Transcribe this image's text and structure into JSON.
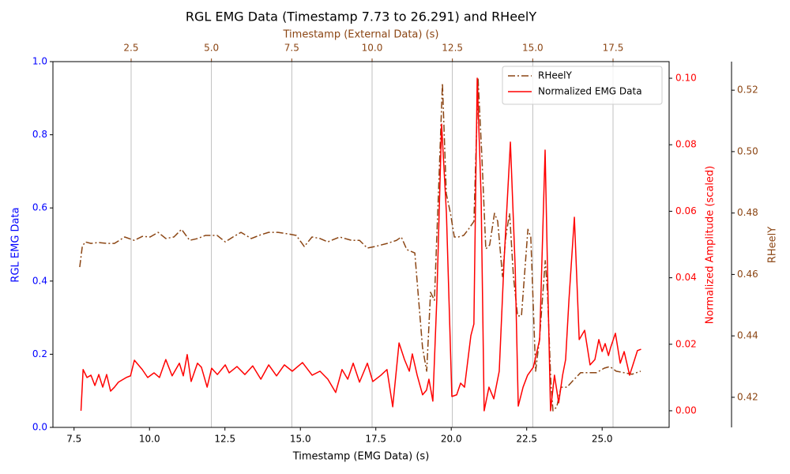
{
  "chart_data": {
    "type": "line",
    "title": "RGL EMG Data (Timestamp 7.73 to 26.291) and RHeelY",
    "x_label": "Timestamp (EMG Data) (s)",
    "x2_label": "Timestamp (External Data) (s)",
    "y_label": "RGL EMG Data",
    "y2_label": "Normalized Amplitude (scaled)",
    "y3_label": "RHeelY",
    "xlim": [
      6.8,
      27.22
    ],
    "xticks": [
      7.5,
      {
        "value": 10,
        "label": "10.0"
      },
      12.5,
      {
        "value": 15,
        "label": "15.0"
      },
      17.5,
      {
        "value": 20,
        "label": "20.0"
      },
      22.5,
      {
        "value": 25,
        "label": "25.0"
      }
    ],
    "x2lim": [
      0.066,
      19.246
    ],
    "x2ticks": [
      2.5,
      {
        "value": 5,
        "label": "5.0"
      },
      7.5,
      {
        "value": 10,
        "label": "10.0"
      },
      12.5,
      {
        "value": 15,
        "label": "15.0"
      },
      17.5
    ],
    "ylim": [
      0,
      1
    ],
    "yticks": [
      {
        "value": 0,
        "label": "0.0"
      },
      {
        "value": 0.2,
        "label": "0.2"
      },
      0.4,
      0.6,
      0.8,
      {
        "value": 1,
        "label": "1.0"
      }
    ],
    "y2lim": [
      -0.005,
      0.105
    ],
    "y2ticks": [
      {
        "value": 0,
        "label": "0.00"
      },
      {
        "value": 0.02,
        "label": "0.02"
      },
      {
        "value": 0.04,
        "label": "0.04"
      },
      {
        "value": 0.06,
        "label": "0.06"
      },
      {
        "value": 0.08,
        "label": "0.08"
      },
      {
        "value": 0.1,
        "label": "0.10"
      }
    ],
    "y3lim": [
      0.4102,
      0.5293
    ],
    "y3ticks": [
      0.42,
      0.44,
      0.46,
      0.48,
      {
        "value": 0.5,
        "label": "0.50"
      },
      0.52
    ],
    "grid": true,
    "legend": "upper right",
    "series": [
      {
        "name": "RHeelY",
        "color": "#8b4513",
        "style": "dashdot",
        "axis": "y3",
        "xaxis": "x2",
        "x": [
          0.9,
          0.98,
          1.07,
          1.25,
          1.49,
          1.74,
          1.98,
          2.3,
          2.6,
          2.85,
          3.09,
          3.34,
          3.58,
          3.83,
          4.07,
          4.32,
          4.57,
          4.81,
          5.18,
          5.43,
          5.67,
          5.92,
          6.24,
          6.53,
          6.78,
          7.07,
          7.39,
          7.64,
          7.89,
          8.13,
          8.38,
          8.62,
          8.99,
          9.36,
          9.61,
          9.85,
          10.1,
          10.47,
          10.76,
          10.91,
          11.08,
          11.33,
          11.45,
          11.57,
          11.7,
          11.82,
          11.94,
          12.07,
          12.19,
          12.31,
          12.44,
          12.56,
          12.68,
          12.85,
          13.0,
          13.17,
          13.3,
          13.42,
          13.54,
          13.66,
          13.81,
          13.91,
          14.06,
          14.16,
          14.28,
          14.4,
          14.53,
          14.65,
          14.85,
          14.94,
          15.09,
          15.21,
          15.39,
          15.46,
          15.56,
          15.63,
          15.75,
          15.88,
          16.07,
          16.25,
          16.49,
          16.74,
          16.98,
          17.23,
          17.4,
          17.6,
          17.85,
          18.09,
          18.36
        ],
        "values": [
          0.4624,
          0.4691,
          0.4706,
          0.4701,
          0.4704,
          0.4701,
          0.4701,
          0.4722,
          0.4711,
          0.4724,
          0.4722,
          0.4737,
          0.4717,
          0.4722,
          0.4747,
          0.4711,
          0.4717,
          0.4727,
          0.4727,
          0.4706,
          0.4722,
          0.4737,
          0.4717,
          0.4729,
          0.4737,
          0.4737,
          0.4732,
          0.4727,
          0.4691,
          0.4722,
          0.4717,
          0.4706,
          0.4722,
          0.4711,
          0.4711,
          0.4686,
          0.4691,
          0.4701,
          0.4711,
          0.4722,
          0.4681,
          0.467,
          0.4516,
          0.4362,
          0.4285,
          0.4542,
          0.4516,
          0.4876,
          0.5223,
          0.4863,
          0.4799,
          0.4722,
          0.4722,
          0.4727,
          0.4747,
          0.4773,
          0.5236,
          0.4979,
          0.4683,
          0.4696,
          0.4799,
          0.4773,
          0.4593,
          0.4722,
          0.4799,
          0.4593,
          0.4465,
          0.4465,
          0.4747,
          0.4722,
          0.4285,
          0.4388,
          0.4645,
          0.4542,
          0.4259,
          0.4156,
          0.4169,
          0.4233,
          0.4233,
          0.4254,
          0.428,
          0.428,
          0.428,
          0.4295,
          0.43,
          0.4285,
          0.428,
          0.4275,
          0.4285
        ]
      },
      {
        "name": "Normalized EMG Data",
        "color": "#ff0000",
        "style": "solid",
        "axis": "y2",
        "xaxis": "x",
        "x": [
          7.73,
          7.8,
          7.93,
          8.06,
          8.19,
          8.32,
          8.45,
          8.58,
          8.71,
          8.84,
          8.97,
          9.23,
          9.37,
          9.5,
          9.76,
          9.94,
          10.15,
          10.33,
          10.54,
          10.75,
          10.99,
          11.12,
          11.25,
          11.38,
          11.59,
          11.72,
          11.91,
          12.06,
          12.25,
          12.51,
          12.64,
          12.9,
          13.16,
          13.42,
          13.69,
          13.95,
          14.21,
          14.47,
          14.73,
          15.07,
          15.39,
          15.65,
          15.91,
          16.17,
          16.38,
          16.57,
          16.75,
          16.96,
          17.22,
          17.4,
          17.67,
          17.87,
          18.06,
          18.27,
          18.45,
          18.61,
          18.71,
          18.87,
          19.05,
          19.18,
          19.26,
          19.39,
          19.52,
          19.68,
          19.84,
          20.02,
          20.18,
          20.31,
          20.44,
          20.65,
          20.75,
          20.86,
          20.99,
          21.09,
          21.25,
          21.41,
          21.59,
          21.75,
          21.96,
          22.12,
          22.22,
          22.38,
          22.53,
          22.72,
          22.93,
          23.11,
          23.21,
          23.29,
          23.42,
          23.56,
          23.69,
          23.79,
          23.9,
          24.08,
          24.24,
          24.42,
          24.6,
          24.76,
          24.89,
          25.0,
          25.1,
          25.21,
          25.28,
          25.44,
          25.6,
          25.73,
          25.91,
          26.02,
          26.17,
          26.29
        ],
        "values": [
          0.0,
          0.0124,
          0.01,
          0.0107,
          0.0076,
          0.0109,
          0.0071,
          0.0109,
          0.0059,
          0.0071,
          0.0086,
          0.01,
          0.0105,
          0.0152,
          0.0124,
          0.01,
          0.0114,
          0.01,
          0.0154,
          0.0105,
          0.0143,
          0.0105,
          0.0169,
          0.0088,
          0.0143,
          0.0131,
          0.0071,
          0.0128,
          0.0109,
          0.0138,
          0.0114,
          0.0133,
          0.0109,
          0.0135,
          0.0095,
          0.0138,
          0.0105,
          0.0138,
          0.0119,
          0.0145,
          0.0107,
          0.0119,
          0.0095,
          0.0055,
          0.0124,
          0.0095,
          0.0143,
          0.0086,
          0.0143,
          0.0088,
          0.0107,
          0.0124,
          0.0012,
          0.0204,
          0.0154,
          0.0119,
          0.0171,
          0.0107,
          0.0048,
          0.0062,
          0.0095,
          0.0029,
          0.0333,
          0.0862,
          0.0594,
          0.0043,
          0.0048,
          0.0083,
          0.0071,
          0.0226,
          0.0261,
          0.1,
          0.0641,
          0.0,
          0.0071,
          0.0036,
          0.0119,
          0.0451,
          0.0808,
          0.0428,
          0.0014,
          0.0071,
          0.0107,
          0.0131,
          0.0214,
          0.0784,
          0.0333,
          0.0,
          0.0107,
          0.0024,
          0.0107,
          0.0154,
          0.0333,
          0.0582,
          0.0214,
          0.0242,
          0.0138,
          0.0154,
          0.0214,
          0.0178,
          0.0202,
          0.0166,
          0.019,
          0.0233,
          0.0143,
          0.0178,
          0.0107,
          0.0138,
          0.0181,
          0.0185
        ]
      }
    ]
  }
}
